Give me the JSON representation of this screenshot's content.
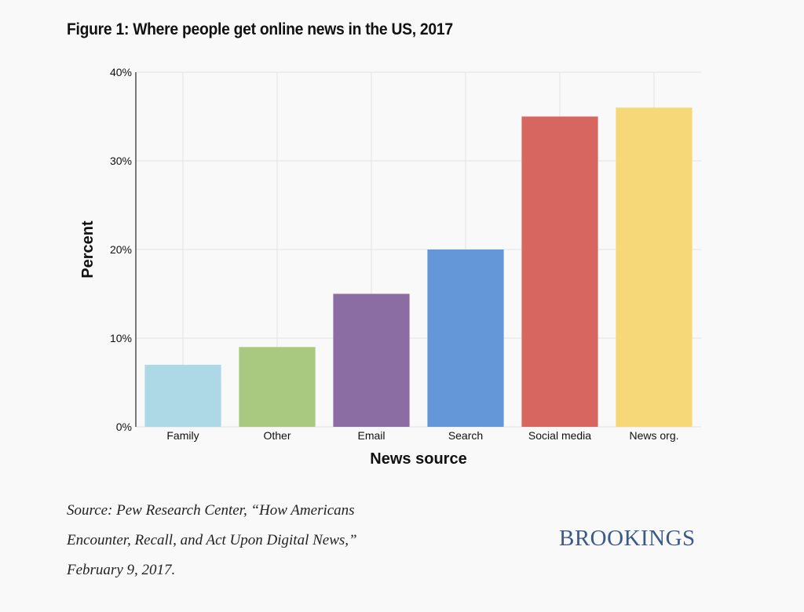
{
  "figure": {
    "title": "Figure 1: Where people get online news in the US, 2017",
    "source_lines": [
      "Source: Pew Research Center, “How Americans",
      "Encounter, Recall, and Act Upon Digital News,”",
      "February 9, 2017."
    ],
    "brand": "BROOKINGS"
  },
  "chart_data": {
    "type": "bar",
    "title": "Figure 1: Where people get online news in the US, 2017",
    "xlabel": "News source",
    "ylabel": "Percent",
    "categories": [
      "Family",
      "Other",
      "Email",
      "Search",
      "Social media",
      "News org."
    ],
    "values": [
      7,
      9,
      15,
      20,
      35,
      36
    ],
    "colors": [
      "#add8e6",
      "#a8c97f",
      "#8b6da3",
      "#6497d8",
      "#d6665f",
      "#f6d878"
    ],
    "ylim": [
      0,
      40
    ],
    "yticks": [
      0,
      10,
      20,
      30,
      40
    ],
    "ytick_labels": [
      "0%",
      "10%",
      "20%",
      "30%",
      "40%"
    ],
    "grid": true,
    "legend": "none"
  }
}
